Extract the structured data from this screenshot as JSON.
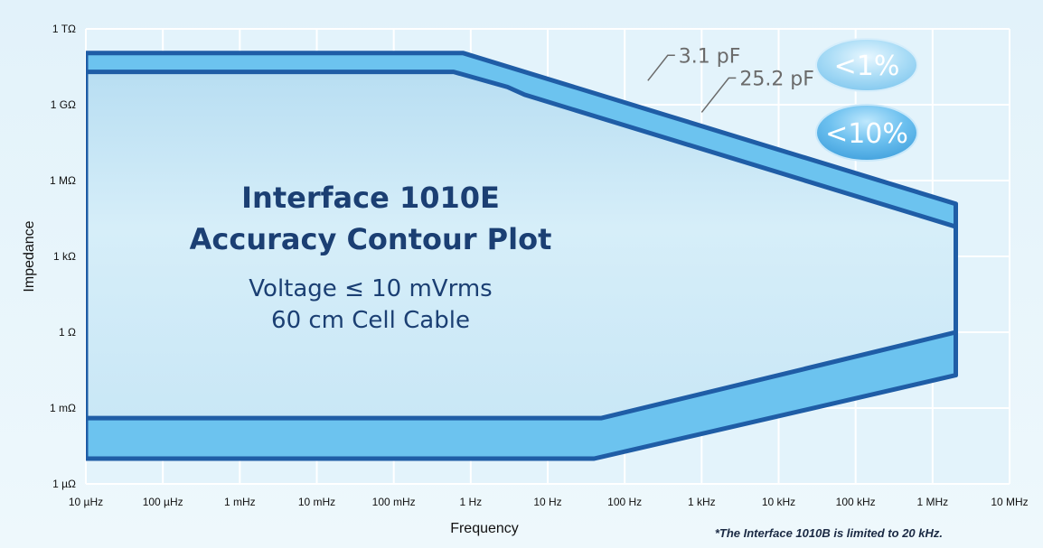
{
  "chart_data": {
    "type": "area",
    "title": "Interface 1010E",
    "subtitle": "Accuracy Contour Plot",
    "conditions": [
      "Voltage ≤ 10 mVrms",
      "60 cm Cell Cable"
    ],
    "xlabel": "Frequency",
    "ylabel": "Impedance",
    "x_scale": "log",
    "y_scale": "log",
    "x_unit": "Hz",
    "y_unit": "Ω",
    "xlim": [
      1e-05,
      10000000.0
    ],
    "ylim": [
      1e-06,
      1000000000000.0
    ],
    "x_ticks": [
      1e-05,
      0.0001,
      0.001,
      0.01,
      0.1,
      1,
      10,
      100,
      1000,
      10000,
      100000,
      1000000,
      10000000
    ],
    "x_tick_labels": [
      "10 µHz",
      "100 µHz",
      "1 mHz",
      "10 mHz",
      "100 mHz",
      "1 Hz",
      "10 Hz",
      "100 Hz",
      "1 kHz",
      "10 kHz",
      "100 kHz",
      "1 MHz",
      "10 MHz"
    ],
    "y_ticks": [
      1e-06,
      0.001,
      1,
      1000.0,
      1000000.0,
      1000000000.0,
      1000000000000.0
    ],
    "y_tick_labels": [
      "1 µΩ",
      "1 mΩ",
      "1 Ω",
      "1 kΩ",
      "1 MΩ",
      "1 GΩ",
      "1 TΩ"
    ],
    "grid": true,
    "series": [
      {
        "name": "<1%",
        "upper": [
          [
            1e-05,
            20000000000.0
          ],
          [
            0.6,
            20000000000.0
          ],
          [
            3,
            5000000000.0
          ],
          [
            5,
            2500000000.0
          ],
          [
            2000000.0,
            15000.0
          ]
        ],
        "lower": [
          [
            1e-05,
            0.0004
          ],
          [
            50,
            0.0004
          ],
          [
            2000000.0,
            1
          ]
        ]
      },
      {
        "name": "<10%",
        "upper": [
          [
            1e-05,
            110000000000.0
          ],
          [
            0.8,
            110000000000.0
          ],
          [
            2000000.0,
            120000.0
          ]
        ],
        "lower": [
          [
            1e-05,
            1e-05
          ],
          [
            40,
            1e-05
          ],
          [
            2000000.0,
            0.02
          ]
        ]
      }
    ],
    "annotations": [
      {
        "text": "3.1 pF",
        "at": [
          200,
          9000000000.0
        ]
      },
      {
        "text": "25.2 pF",
        "at": [
          1000,
          500000000.0
        ]
      }
    ],
    "footnote": "*The Interface 1010B is limited to 20 kHz."
  },
  "colors": {
    "background": "#e9f5fb",
    "grid": "#ffffff",
    "band_fill": "#6cc3ef",
    "inner_fill": "#c3e4f5",
    "outline": "#1f5da6",
    "title_text": "#1b3f73",
    "bubble_fill": "#5ab0e6",
    "annotation_text": "#6b6b6b"
  }
}
